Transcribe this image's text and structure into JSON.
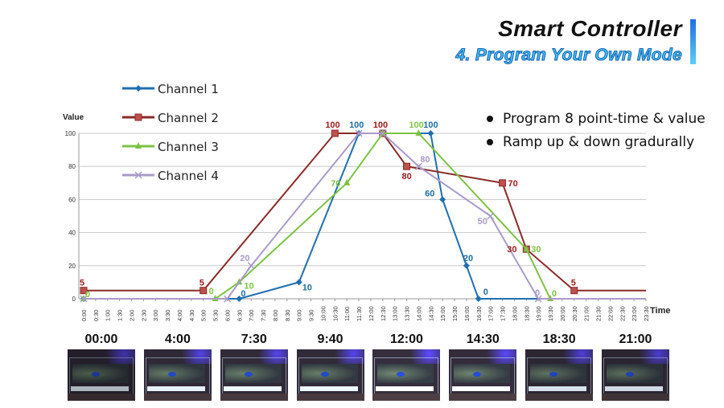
{
  "header": {
    "title": "Smart Controller",
    "subtitle": "4. Program Your Own Mode"
  },
  "bullets": [
    "Program 8 point-time & value",
    "Ramp up & down gradurally"
  ],
  "photo_strip": {
    "times": [
      "00:00",
      "4:00",
      "7:30",
      "9:40",
      "12:00",
      "14:30",
      "18:30",
      "21:00"
    ],
    "brightness": [
      0.35,
      0.75,
      0.8,
      0.8,
      0.95,
      0.9,
      0.65,
      0.6
    ]
  },
  "chart_data": {
    "type": "line",
    "title": "",
    "xlabel": "Time",
    "ylabel": "Value",
    "ylim": [
      0,
      100
    ],
    "yticks": [
      0,
      20,
      40,
      60,
      80,
      100
    ],
    "grid": true,
    "legend_position": "top-left",
    "x_categories": [
      "0:00",
      "0:30",
      "1:00",
      "1:30",
      "2:00",
      "2:30",
      "3:00",
      "3:30",
      "4:00",
      "4:30",
      "5:00",
      "5:30",
      "6:00",
      "6:30",
      "7:00",
      "7:30",
      "8:00",
      "8:30",
      "9:00",
      "9:30",
      "10:00",
      "10:30",
      "11:00",
      "11:30",
      "12:00",
      "12:30",
      "13:00",
      "13:30",
      "14:00",
      "14:30",
      "15:00",
      "15:30",
      "16:00",
      "16:30",
      "17:00",
      "17:30",
      "18:00",
      "18:30",
      "19:00",
      "19:30",
      "20:00",
      "20:30",
      "21:00",
      "21:30",
      "22:00",
      "22:30",
      "23:00",
      "23:30"
    ],
    "series": [
      {
        "name": "Channel 1",
        "color": "#1f6fb0",
        "marker": "diamond",
        "label_color": "#1f6fa0",
        "points": [
          {
            "x": "0:00",
            "y": 0,
            "label": ""
          },
          {
            "x": "6:30",
            "y": 0,
            "label": "0"
          },
          {
            "x": "9:00",
            "y": 10,
            "label": "10"
          },
          {
            "x": "11:30",
            "y": 100,
            "label": "100"
          },
          {
            "x": "14:30",
            "y": 100,
            "label": "100"
          },
          {
            "x": "15:00",
            "y": 60,
            "label": "60"
          },
          {
            "x": "16:00",
            "y": 20,
            "label": "20"
          },
          {
            "x": "16:30",
            "y": 0,
            "label": "0"
          },
          {
            "x": "23:30",
            "y": 0,
            "label": ""
          }
        ]
      },
      {
        "name": "Channel 2",
        "color": "#8b2a2a",
        "marker": "square",
        "label_color": "#a01c1c",
        "points": [
          {
            "x": "0:00",
            "y": 5,
            "label": "5"
          },
          {
            "x": "5:00",
            "y": 5,
            "label": "5"
          },
          {
            "x": "10:30",
            "y": 100,
            "label": "100"
          },
          {
            "x": "12:30",
            "y": 100,
            "label": "100"
          },
          {
            "x": "13:30",
            "y": 80,
            "label": "80"
          },
          {
            "x": "17:30",
            "y": 70,
            "label": "70"
          },
          {
            "x": "18:30",
            "y": 30,
            "label": "30"
          },
          {
            "x": "20:30",
            "y": 5,
            "label": "5"
          },
          {
            "x": "23:30",
            "y": 5,
            "label": ""
          }
        ]
      },
      {
        "name": "Channel 3",
        "color": "#7dc243",
        "marker": "triangle",
        "label_color": "#7dc243",
        "points": [
          {
            "x": "0:00",
            "y": 0,
            "label": "0"
          },
          {
            "x": "5:30",
            "y": 0,
            "label": "0"
          },
          {
            "x": "6:30",
            "y": 10,
            "label": "10"
          },
          {
            "x": "11:00",
            "y": 70,
            "label": "70"
          },
          {
            "x": "12:30",
            "y": 100,
            "label": ""
          },
          {
            "x": "14:00",
            "y": 100,
            "label": "100"
          },
          {
            "x": "18:30",
            "y": 30,
            "label": "30"
          },
          {
            "x": "19:30",
            "y": 0,
            "label": "0"
          },
          {
            "x": "23:30",
            "y": 0,
            "label": ""
          }
        ]
      },
      {
        "name": "Channel 4",
        "color": "#a99bc8",
        "marker": "x",
        "label_color": "#a99bc8",
        "points": [
          {
            "x": "0:00",
            "y": 0,
            "label": ""
          },
          {
            "x": "6:00",
            "y": 0,
            "label": ""
          },
          {
            "x": "7:00",
            "y": 20,
            "label": "20"
          },
          {
            "x": "11:30",
            "y": 100,
            "label": ""
          },
          {
            "x": "12:30",
            "y": 100,
            "label": ""
          },
          {
            "x": "14:00",
            "y": 80,
            "label": "80"
          },
          {
            "x": "17:00",
            "y": 50,
            "label": "50"
          },
          {
            "x": "19:00",
            "y": 0,
            "label": "0"
          },
          {
            "x": "23:30",
            "y": 0,
            "label": ""
          }
        ]
      }
    ]
  }
}
